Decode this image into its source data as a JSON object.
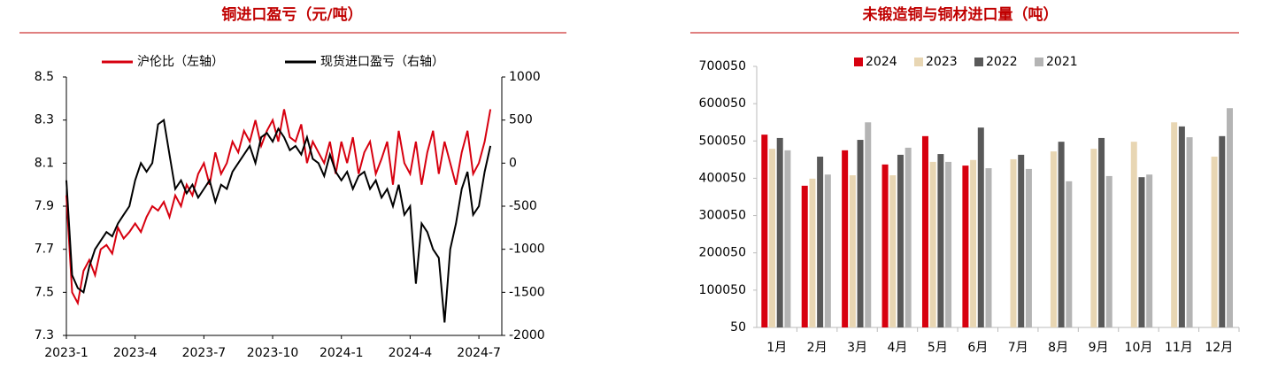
{
  "chart_data": [
    {
      "type": "line",
      "title": "铜进口盈亏（元/吨）",
      "categories": [
        "2023-1",
        null,
        null,
        null,
        null,
        null,
        null,
        null,
        null,
        null,
        null,
        null,
        "2023-4",
        null,
        null,
        null,
        null,
        null,
        null,
        null,
        null,
        null,
        null,
        null,
        "2023-7",
        null,
        null,
        null,
        null,
        null,
        null,
        null,
        null,
        null,
        null,
        null,
        "2023-10",
        null,
        null,
        null,
        null,
        null,
        null,
        null,
        null,
        null,
        null,
        null,
        "2024-1",
        null,
        null,
        null,
        null,
        null,
        null,
        null,
        null,
        null,
        null,
        null,
        "2024-4",
        null,
        null,
        null,
        null,
        null,
        null,
        null,
        null,
        null,
        null,
        null,
        "2024-7",
        null,
        null
      ],
      "series": [
        {
          "name": "沪伦比（左轴）",
          "color": "#d7000f",
          "axis": "y",
          "values": [
            7.95,
            7.5,
            7.45,
            7.6,
            7.65,
            7.58,
            7.7,
            7.72,
            7.68,
            7.8,
            7.75,
            7.78,
            7.82,
            7.78,
            7.85,
            7.9,
            7.88,
            7.92,
            7.85,
            7.95,
            7.9,
            8.0,
            7.95,
            8.05,
            8.1,
            8.0,
            8.15,
            8.05,
            8.1,
            8.2,
            8.15,
            8.25,
            8.2,
            8.3,
            8.18,
            8.25,
            8.3,
            8.2,
            8.35,
            8.22,
            8.2,
            8.28,
            8.1,
            8.2,
            8.15,
            8.1,
            8.2,
            8.05,
            8.2,
            8.1,
            8.22,
            8.05,
            8.15,
            8.2,
            8.05,
            8.12,
            8.2,
            8.0,
            8.25,
            8.1,
            8.05,
            8.2,
            8.0,
            8.15,
            8.25,
            8.05,
            8.2,
            8.1,
            8.0,
            8.15,
            8.25,
            8.05,
            8.1,
            8.2,
            8.35
          ]
        },
        {
          "name": "现货进口盈亏（右轴）",
          "color": "#000000",
          "axis": "y2",
          "values": [
            -200,
            -1300,
            -1450,
            -1500,
            -1200,
            -1000,
            -900,
            -800,
            -850,
            -700,
            -600,
            -500,
            -200,
            0,
            -100,
            0,
            450,
            500,
            100,
            -300,
            -200,
            -350,
            -250,
            -400,
            -300,
            -200,
            -450,
            -250,
            -300,
            -100,
            0,
            100,
            200,
            0,
            300,
            350,
            250,
            400,
            300,
            150,
            200,
            100,
            300,
            50,
            0,
            -150,
            100,
            -100,
            -200,
            -100,
            -300,
            -150,
            -100,
            -300,
            -200,
            -400,
            -300,
            -500,
            -250,
            -600,
            -500,
            -1400,
            -700,
            -800,
            -1000,
            -1100,
            -1850,
            -1000,
            -700,
            -300,
            -100,
            -600,
            -500,
            -100,
            200
          ]
        }
      ],
      "ylim": [
        7.3,
        8.5
      ],
      "yticks": [
        7.3,
        7.5,
        7.7,
        7.9,
        8.1,
        8.3,
        8.5
      ],
      "y2lim": [
        -2000,
        1000
      ],
      "y2ticks": [
        -2000,
        -1500,
        -1000,
        -500,
        0,
        500,
        1000
      ]
    },
    {
      "type": "bar",
      "title": "未锻造铜与铜材进口量（吨）",
      "categories": [
        "1月",
        "2月",
        "3月",
        "4月",
        "5月",
        "6月",
        "7月",
        "8月",
        "9月",
        "10月",
        "11月",
        "12月"
      ],
      "series": [
        {
          "name": "2024",
          "color": "#d7000f",
          "values": [
            517000,
            380000,
            475000,
            437000,
            513000,
            434000,
            null,
            null,
            null,
            null,
            null,
            null
          ]
        },
        {
          "name": "2023",
          "color": "#e8d6b3",
          "values": [
            479000,
            399000,
            408000,
            408000,
            444000,
            449000,
            451000,
            472000,
            479000,
            498000,
            550000,
            458000
          ]
        },
        {
          "name": "2022",
          "color": "#595959",
          "values": [
            508000,
            458000,
            503000,
            463000,
            465000,
            536000,
            463000,
            498000,
            508000,
            403000,
            539000,
            513000
          ]
        },
        {
          "name": "2021",
          "color": "#b4b4b4",
          "values": [
            475000,
            410000,
            550000,
            482000,
            444000,
            427000,
            425000,
            392000,
            406000,
            410000,
            510000,
            588000
          ]
        }
      ],
      "ylim": [
        50,
        700050
      ],
      "yticks": [
        50,
        100050,
        200050,
        300050,
        400050,
        500050,
        600050,
        700050
      ]
    }
  ]
}
